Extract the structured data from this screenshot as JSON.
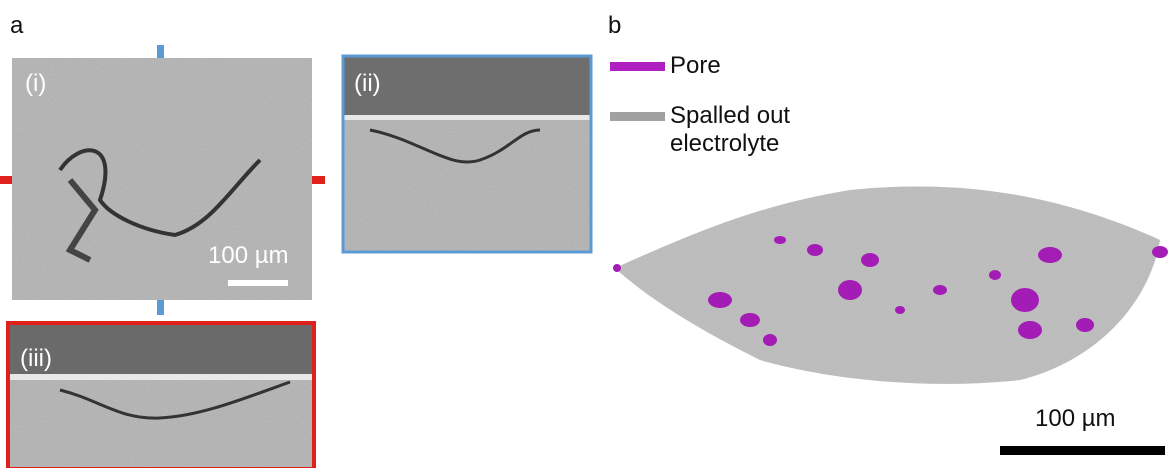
{
  "panel_a": {
    "label": "a",
    "images": [
      {
        "label": "(i)",
        "scale_bar": "100 µm"
      },
      {
        "label": "(ii)"
      },
      {
        "label": "(iii)"
      }
    ]
  },
  "panel_b": {
    "label": "b",
    "legend": [
      "Pore",
      "Spalled out electrolyte"
    ],
    "scale_bar": "100 µm"
  }
}
